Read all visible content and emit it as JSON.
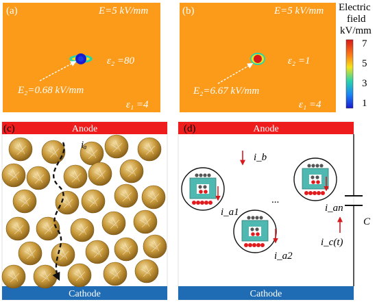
{
  "panel_a": {
    "tag": "(a)",
    "applied": "E=5 kV/mm",
    "eps2": "ε₂ =80",
    "e2": "E₂=0.68 kV/mm",
    "eps1": "ε₁ =4"
  },
  "panel_b": {
    "tag": "(b)",
    "applied": "E=5 kV/mm",
    "eps2": "ε₂ =1",
    "e2": "E₂=6.67 kV/mm",
    "eps1": "ε₁ =4"
  },
  "colorbar": {
    "title_line1": "Electric",
    "title_line2": "field",
    "title_line3": "kV/mm",
    "ticks": [
      "7",
      "5",
      "3",
      "1"
    ],
    "colors": [
      "#d7191c",
      "#fb9b19",
      "#f5e11a",
      "#2bd4a8",
      "#1a86f5",
      "#1a1acc"
    ]
  },
  "panel_c": {
    "tag": "(c)",
    "anode": "Anode",
    "cathode": "Cathode",
    "current": "iₐ"
  },
  "panel_d": {
    "tag": "(d)",
    "anode": "Anode",
    "cathode": "Cathode",
    "i_b": "i_b",
    "i_a1": "i_a1",
    "i_a2": "i_a2",
    "i_an": "i_an",
    "i_c": "i_c(t)",
    "capacitor": "C",
    "ellipsis": "..."
  }
}
